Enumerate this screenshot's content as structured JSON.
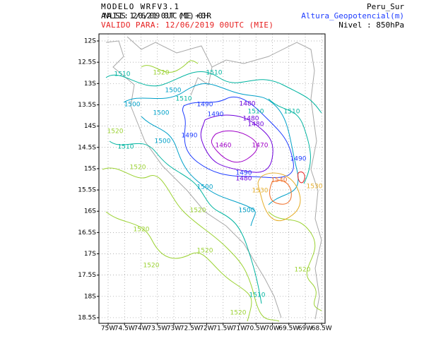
{
  "header": {
    "model": "MODELO WRFV3.1",
    "analysis": "ANALISIS: 12/06/2019 00UTC (MIE) +00HR",
    "valid": "VALIDO PARA: 12/06/2019 00UTC (MIE)",
    "region": "Peru_Sur",
    "variable": "Altura_Geopotencial(m)",
    "level": "Nivel : 850hPa"
  },
  "axes": {
    "lon_ticks": [
      "75W",
      "74.5W",
      "74W",
      "73.5W",
      "73W",
      "72.5W",
      "72W",
      "71.5W",
      "71W",
      "70.5W",
      "70W",
      "69.5W",
      "69W",
      "68.5W"
    ],
    "lat_ticks": [
      "12S",
      "12.5S",
      "13S",
      "13.5S",
      "14S",
      "14.5S",
      "15S",
      "15.5S",
      "16S",
      "16.5S",
      "17S",
      "17.5S",
      "18S",
      "18.5S"
    ]
  },
  "contour_labels": [
    {
      "text": "1510",
      "color": "#00b4a0"
    },
    {
      "text": "1520",
      "color": "#9bd232"
    },
    {
      "text": "1510",
      "color": "#00b4a0"
    },
    {
      "text": "1500",
      "color": "#00a0c8"
    },
    {
      "text": "1510",
      "color": "#00b4a0"
    },
    {
      "text": "1500",
      "color": "#00a0c8"
    },
    {
      "text": "1490",
      "color": "#1e3cff"
    },
    {
      "text": "1490",
      "color": "#1e3cff"
    },
    {
      "text": "1500",
      "color": "#00a0c8"
    },
    {
      "text": "1480",
      "color": "#6e00dc"
    },
    {
      "text": "1510",
      "color": "#00b4a0"
    },
    {
      "text": "1480",
      "color": "#6e00dc"
    },
    {
      "text": "1480",
      "color": "#6e00dc"
    },
    {
      "text": "1510",
      "color": "#00b4a0"
    },
    {
      "text": "1520",
      "color": "#9bd232"
    },
    {
      "text": "1490",
      "color": "#1e3cff"
    },
    {
      "text": "1500",
      "color": "#00a0c8"
    },
    {
      "text": "1460",
      "color": "#a000c8"
    },
    {
      "text": "1470",
      "color": "#a000c8"
    },
    {
      "text": "1510",
      "color": "#00b4a0"
    },
    {
      "text": "1490",
      "color": "#1e3cff"
    },
    {
      "text": "1520",
      "color": "#9bd232"
    },
    {
      "text": "1490",
      "color": "#1e3cff"
    },
    {
      "text": "1480",
      "color": "#6e00dc"
    },
    {
      "text": "1500",
      "color": "#00a0c8"
    },
    {
      "text": "1540",
      "color": "#f06e28"
    },
    {
      "text": "1530",
      "color": "#e6af2d"
    },
    {
      "text": "1530",
      "color": "#e6af2d"
    },
    {
      "text": "1520",
      "color": "#9bd232"
    },
    {
      "text": "1500",
      "color": "#00a0c8"
    },
    {
      "text": "1520",
      "color": "#9bd232"
    },
    {
      "text": "1520",
      "color": "#9bd232"
    },
    {
      "text": "1520",
      "color": "#9bd232"
    },
    {
      "text": "1520",
      "color": "#9bd232"
    },
    {
      "text": "1510",
      "color": "#00b4a0"
    },
    {
      "text": "1520",
      "color": "#9bd232"
    }
  ]
}
